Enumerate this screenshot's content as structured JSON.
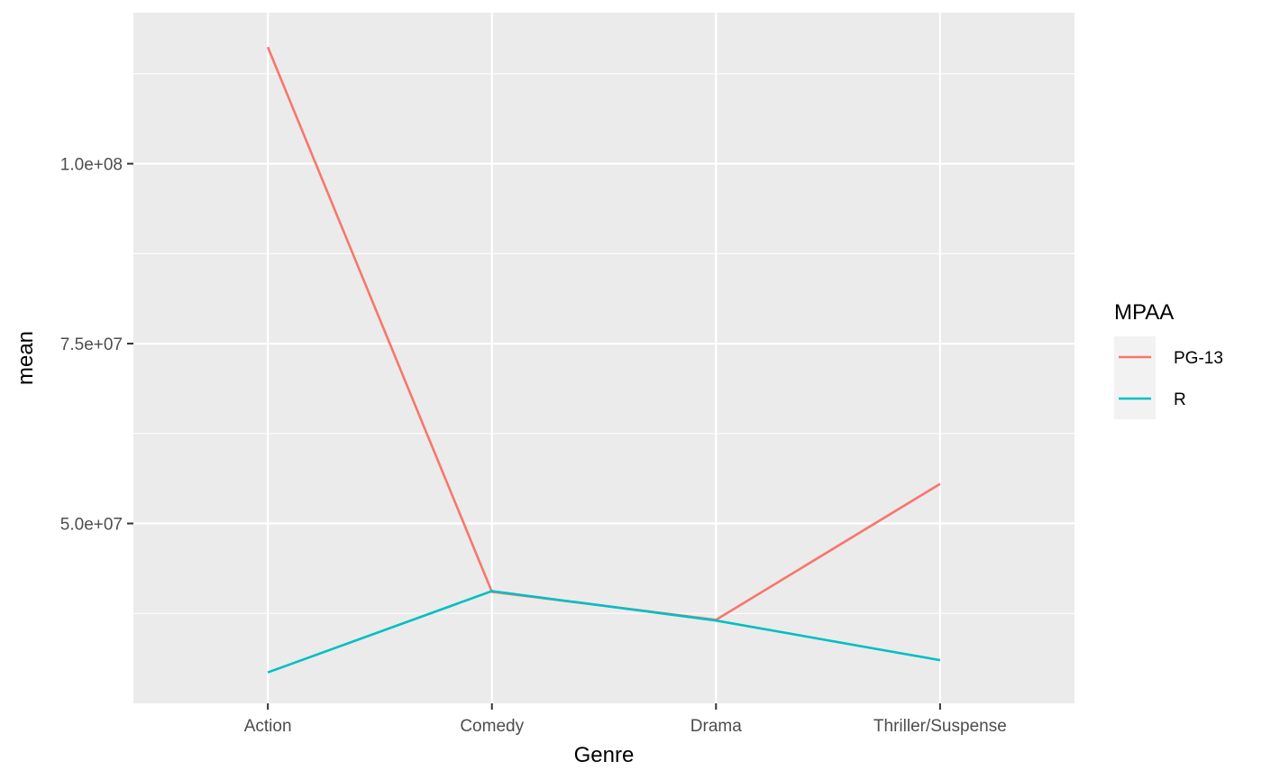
{
  "chart_data": {
    "type": "line",
    "title": "",
    "xlabel": "Genre",
    "ylabel": "mean",
    "categories": [
      "Action",
      "Comedy",
      "Drama",
      "Thriller/Suspense"
    ],
    "series": [
      {
        "name": "PG-13",
        "color": "#F8766D",
        "values": [
          116200000,
          40500000,
          36600000,
          55500000
        ]
      },
      {
        "name": "R",
        "color": "#00BFC4",
        "values": [
          29300000,
          40600000,
          36500000,
          31000000
        ]
      }
    ],
    "ylim": [
      25000000,
      121000000
    ],
    "y_ticks": [
      50000000,
      75000000,
      100000000
    ],
    "y_tick_labels": [
      "5.0e+07",
      "7.5e+07",
      "1.0e+08"
    ],
    "y_minor_ticks": [
      37500000,
      62500000,
      87500000,
      112500000
    ],
    "grid": true,
    "legend": {
      "title": "MPAA",
      "placement": "right"
    },
    "colors": {
      "panel": "#EBEBEB",
      "grid": "#FFFFFF",
      "legend_key": "#F2F2F2"
    }
  }
}
